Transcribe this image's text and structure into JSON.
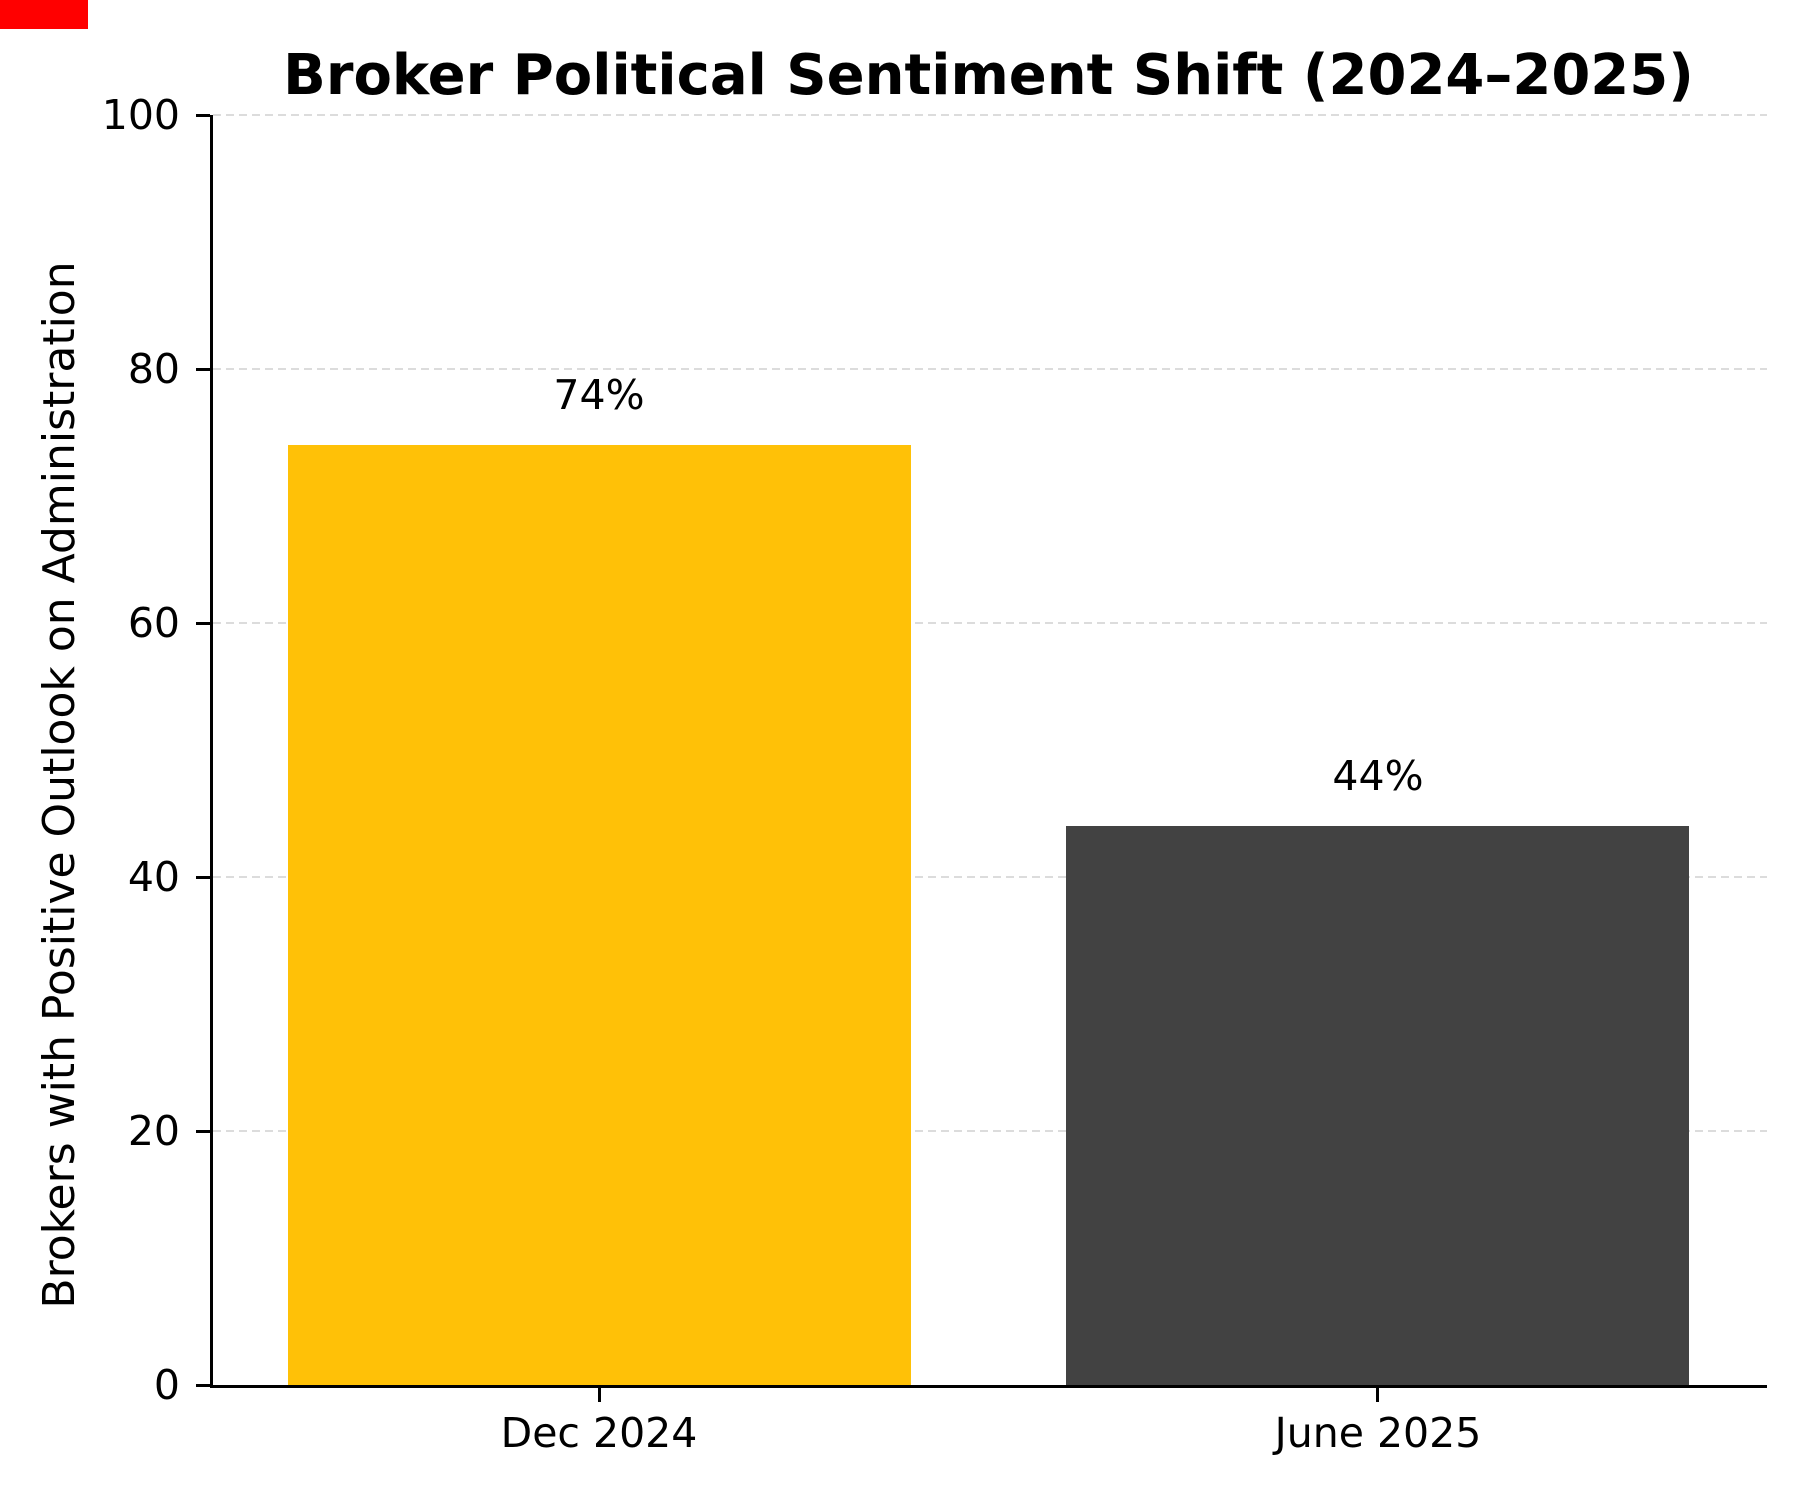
{
  "title": "Broker Political Sentiment Shift (2024–2025)",
  "chart_data": {
    "type": "bar",
    "title": "Broker Political Sentiment Shift (2024–2025)",
    "xlabel": "",
    "ylabel": "Brokers with Positive Outlook on Administration",
    "categories": [
      "Dec 2024",
      "June 2025"
    ],
    "values": [
      74,
      44
    ],
    "value_labels": [
      "74%",
      "44%"
    ],
    "bar_colors": [
      "#FFC107",
      "#424242"
    ],
    "ylim": [
      0,
      100
    ],
    "yticks": [
      0,
      20,
      40,
      60,
      80,
      100
    ],
    "bar_width_fraction": 0.8,
    "grid": "horizontal dashed",
    "legend_position": "none"
  },
  "colors": {
    "background": "#ffffff",
    "axis": "#000000",
    "gridline": "#dcdcdc",
    "text": "#000000",
    "bar_dec_2024": "#FFC107",
    "bar_june_2025": "#424242",
    "corner_marker": "#ff0000"
  }
}
